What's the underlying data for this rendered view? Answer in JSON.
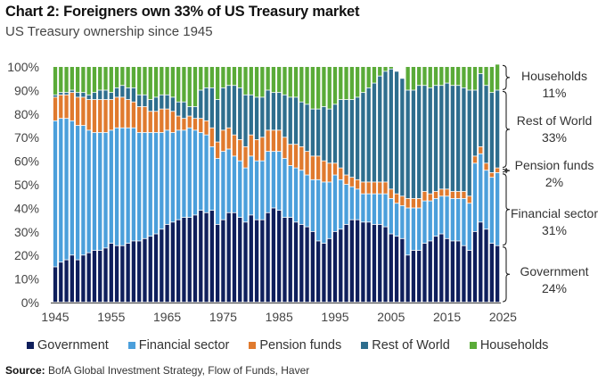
{
  "header": {
    "title": "Chart 2: Foreigners own 33% of US Treasury market",
    "subtitle": "US Treasury ownership since 1945"
  },
  "source": {
    "label": "Source:",
    "text": "BofA Global Investment Strategy, Flow of Funds, Haver"
  },
  "chart_data": {
    "type": "bar",
    "stacked": true,
    "title": "Chart 2: Foreigners own 33% of US Treasury market",
    "subtitle": "US Treasury ownership since 1945",
    "xlabel": "",
    "ylabel": "",
    "ylim": [
      0,
      100
    ],
    "yticks": [
      "0%",
      "10%",
      "20%",
      "30%",
      "40%",
      "50%",
      "60%",
      "70%",
      "80%",
      "90%",
      "100%"
    ],
    "xticks": [
      "1945",
      "1955",
      "1965",
      "1975",
      "1985",
      "1995",
      "2005",
      "2015",
      "2025"
    ],
    "grid": false,
    "legend_position": "bottom",
    "x": [
      1945,
      1946,
      1947,
      1948,
      1949,
      1950,
      1951,
      1952,
      1953,
      1954,
      1955,
      1956,
      1957,
      1958,
      1959,
      1960,
      1961,
      1962,
      1963,
      1964,
      1965,
      1966,
      1967,
      1968,
      1969,
      1970,
      1971,
      1972,
      1973,
      1974,
      1975,
      1976,
      1977,
      1978,
      1979,
      1980,
      1981,
      1982,
      1983,
      1984,
      1985,
      1986,
      1987,
      1988,
      1989,
      1990,
      1991,
      1992,
      1993,
      1994,
      1995,
      1996,
      1997,
      1998,
      1999,
      2000,
      2001,
      2002,
      2003,
      2004,
      2005,
      2006,
      2007,
      2008,
      2009,
      2010,
      2011,
      2012,
      2013,
      2014,
      2015,
      2016,
      2017,
      2018,
      2019,
      2020,
      2021,
      2022,
      2023,
      2024
    ],
    "series": [
      {
        "name": "Government",
        "color": "#0f1f5c",
        "values": [
          15,
          17,
          18,
          20,
          18,
          20,
          21,
          22,
          22,
          23,
          25,
          24,
          24,
          25,
          26,
          26,
          27,
          28,
          29,
          31,
          33,
          34,
          35,
          36,
          36,
          37,
          39,
          38,
          39,
          33,
          35,
          38,
          38,
          36,
          34,
          37,
          35,
          35,
          38,
          40,
          39,
          36,
          36,
          34,
          33,
          32,
          30,
          26,
          25,
          27,
          30,
          31,
          33,
          35,
          35,
          34,
          34,
          33,
          33,
          32,
          29,
          28,
          27,
          20,
          22,
          22,
          25,
          26,
          28,
          29,
          27,
          26,
          26,
          24,
          22,
          30,
          34,
          31,
          25,
          24
        ]
      },
      {
        "name": "Financial sector",
        "color": "#4b9fdb",
        "values": [
          62,
          61,
          60,
          57,
          57,
          55,
          52,
          50,
          50,
          49,
          48,
          50,
          50,
          49,
          48,
          46,
          45,
          44,
          43,
          41,
          40,
          38,
          38,
          37,
          38,
          36,
          33,
          33,
          27,
          28,
          29,
          27,
          24,
          24,
          23,
          25,
          25,
          25,
          26,
          24,
          25,
          25,
          22,
          23,
          23,
          22,
          22,
          26,
          26,
          24,
          24,
          21,
          17,
          14,
          13,
          12,
          12,
          13,
          13,
          14,
          15,
          14,
          14,
          20,
          18,
          18,
          18,
          17,
          16,
          16,
          18,
          18,
          18,
          20,
          20,
          29,
          29,
          25,
          28,
          31
        ]
      },
      {
        "name": "Pension funds",
        "color": "#e07a2e",
        "values": [
          10,
          10,
          10,
          12,
          12,
          12,
          13,
          14,
          14,
          14,
          13,
          13,
          13,
          12,
          11,
          11,
          11,
          9,
          9,
          10,
          9,
          9,
          6,
          5,
          5,
          5,
          6,
          6,
          8,
          7,
          9,
          9,
          9,
          9,
          9,
          9,
          9,
          10,
          9,
          9,
          9,
          9,
          9,
          10,
          10,
          10,
          10,
          10,
          9,
          8,
          5,
          5,
          4,
          4,
          4,
          5,
          5,
          5,
          5,
          5,
          4,
          4,
          4,
          4,
          4,
          4,
          4,
          3,
          3,
          3,
          3,
          3,
          3,
          3,
          3,
          3,
          3,
          3,
          2,
          2
        ]
      },
      {
        "name": "Rest of World",
        "color": "#2e6e8e",
        "values": [
          1,
          1,
          1,
          1,
          2,
          2,
          2,
          3,
          4,
          4,
          3,
          4,
          5,
          5,
          6,
          5,
          5,
          5,
          6,
          6,
          6,
          6,
          6,
          7,
          4,
          5,
          12,
          14,
          17,
          18,
          18,
          18,
          21,
          22,
          22,
          17,
          18,
          17,
          17,
          16,
          16,
          18,
          20,
          20,
          19,
          20,
          20,
          20,
          23,
          23,
          25,
          29,
          32,
          33,
          35,
          38,
          40,
          42,
          45,
          47,
          51,
          52,
          50,
          46,
          46,
          48,
          45,
          45,
          45,
          44,
          45,
          45,
          45,
          44,
          45,
          28,
          31,
          33,
          34,
          33
        ]
      },
      {
        "name": "Households",
        "color": "#5aab38",
        "values": [
          12,
          11,
          11,
          10,
          11,
          11,
          12,
          11,
          10,
          10,
          11,
          9,
          8,
          9,
          9,
          12,
          12,
          14,
          13,
          12,
          12,
          13,
          15,
          15,
          17,
          17,
          10,
          9,
          9,
          14,
          9,
          8,
          8,
          9,
          12,
          12,
          13,
          13,
          10,
          11,
          11,
          12,
          13,
          13,
          15,
          16,
          18,
          18,
          17,
          18,
          16,
          14,
          14,
          14,
          13,
          11,
          9,
          7,
          4,
          2,
          1,
          -2,
          -3,
          10,
          10,
          8,
          8,
          9,
          8,
          8,
          7,
          8,
          8,
          9,
          10,
          10,
          3,
          8,
          11,
          11
        ]
      }
    ],
    "annotations": [
      {
        "label": "Households",
        "value": "11%"
      },
      {
        "label": "Rest of World",
        "value": "33%"
      },
      {
        "label": "Pension funds",
        "value": "2%"
      },
      {
        "label": "Financial sector",
        "value": "31%"
      },
      {
        "label": "Government",
        "value": "24%"
      }
    ]
  }
}
